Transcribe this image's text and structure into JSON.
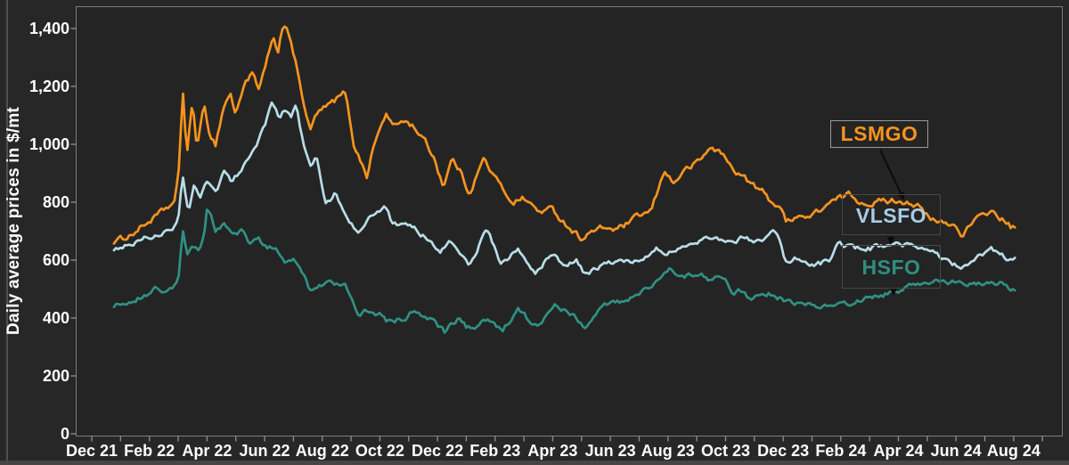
{
  "chart_data": {
    "type": "line",
    "title": "",
    "xlabel": "",
    "ylabel": "Daily average prices in $/mt",
    "ylim": [
      0,
      1400
    ],
    "y_tick_values": [
      0,
      200,
      400,
      600,
      800,
      1000,
      1200,
      1400
    ],
    "y_tick_labels": [
      "0",
      "200",
      "400",
      "600",
      "800",
      "1,000",
      "1,200",
      "1,400"
    ],
    "x_tick_labels": [
      "Dec 21",
      "Feb 22",
      "Apr 22",
      "Jun 22",
      "Aug 22",
      "Oct 22",
      "Dec 22",
      "Feb 23",
      "Apr 23",
      "Jun 23",
      "Aug 23",
      "Oct 23",
      "Dec 23",
      "Feb 24",
      "Apr 24",
      "Jun 24",
      "Aug 24"
    ],
    "x_minor_tick_interval_months": 1,
    "x_anchor_unit": "months_after_Dec_2021_tick",
    "grid": false,
    "legend_position": "annotated-boxes-right",
    "colors": {
      "background": "#272727",
      "plot_background": "#242424",
      "axis_border": "#7d7d7d",
      "tick": "#8a8a8a",
      "tick_label": "#ffffff",
      "leader_arrow": "#0d0d0d"
    },
    "legend": [
      {
        "label": "LSMGO",
        "text_color": "#F7941E"
      },
      {
        "label": "VLSFO",
        "text_color": "#A9CBE4"
      },
      {
        "label": "HSFO",
        "text_color": "#2F8F80"
      }
    ],
    "series": [
      {
        "name": "LSMGO",
        "color": "#F7941E",
        "anchors": [
          [
            0.77,
            665
          ],
          [
            1.0,
            672
          ],
          [
            1.4,
            690
          ],
          [
            1.8,
            720
          ],
          [
            2.2,
            748
          ],
          [
            2.6,
            780
          ],
          [
            2.9,
            800
          ],
          [
            3.05,
            940
          ],
          [
            3.15,
            1210
          ],
          [
            3.3,
            960
          ],
          [
            3.5,
            1150
          ],
          [
            3.65,
            990
          ],
          [
            3.9,
            1130
          ],
          [
            4.1,
            1035
          ],
          [
            4.3,
            1000
          ],
          [
            4.55,
            1120
          ],
          [
            4.8,
            1180
          ],
          [
            5.0,
            1100
          ],
          [
            5.3,
            1215
          ],
          [
            5.6,
            1245
          ],
          [
            5.8,
            1180
          ],
          [
            6.1,
            1300
          ],
          [
            6.3,
            1360
          ],
          [
            6.45,
            1310
          ],
          [
            6.6,
            1400
          ],
          [
            6.75,
            1420
          ],
          [
            6.95,
            1330
          ],
          [
            7.2,
            1230
          ],
          [
            7.45,
            1090
          ],
          [
            7.6,
            1050
          ],
          [
            7.8,
            1105
          ],
          [
            8.3,
            1140
          ],
          [
            8.8,
            1180
          ],
          [
            9.1,
            1000
          ],
          [
            9.55,
            890
          ],
          [
            9.8,
            1000
          ],
          [
            10.2,
            1105
          ],
          [
            10.5,
            1060
          ],
          [
            10.8,
            1085
          ],
          [
            11.2,
            1060
          ],
          [
            11.6,
            1005
          ],
          [
            11.9,
            950
          ],
          [
            12.2,
            855
          ],
          [
            12.5,
            950
          ],
          [
            12.8,
            905
          ],
          [
            13.1,
            830
          ],
          [
            13.6,
            950
          ],
          [
            13.9,
            900
          ],
          [
            14.2,
            855
          ],
          [
            14.6,
            800
          ],
          [
            15.0,
            815
          ],
          [
            15.5,
            768
          ],
          [
            16.0,
            776
          ],
          [
            16.3,
            740
          ],
          [
            16.6,
            710
          ],
          [
            17.0,
            675
          ],
          [
            17.4,
            700
          ],
          [
            17.8,
            712
          ],
          [
            18.2,
            705
          ],
          [
            18.6,
            725
          ],
          [
            19.0,
            754
          ],
          [
            19.4,
            766
          ],
          [
            19.9,
            914
          ],
          [
            20.2,
            862
          ],
          [
            20.5,
            905
          ],
          [
            20.9,
            929
          ],
          [
            21.2,
            955
          ],
          [
            21.5,
            991
          ],
          [
            21.9,
            966
          ],
          [
            22.2,
            920
          ],
          [
            22.6,
            889
          ],
          [
            23.0,
            855
          ],
          [
            23.3,
            835
          ],
          [
            23.6,
            800
          ],
          [
            23.9,
            787
          ],
          [
            24.1,
            729
          ],
          [
            24.5,
            760
          ],
          [
            24.8,
            745
          ],
          [
            25.1,
            760
          ],
          [
            25.5,
            791
          ],
          [
            26.0,
            815
          ],
          [
            26.3,
            828
          ],
          [
            26.7,
            800
          ],
          [
            27.1,
            797
          ],
          [
            27.5,
            805
          ],
          [
            28.0,
            806
          ],
          [
            28.4,
            800
          ],
          [
            28.7,
            785
          ],
          [
            29.1,
            739
          ],
          [
            29.5,
            729
          ],
          [
            29.9,
            723
          ],
          [
            30.2,
            689
          ],
          [
            30.6,
            730
          ],
          [
            31.0,
            760
          ],
          [
            31.2,
            770
          ],
          [
            31.6,
            740
          ],
          [
            31.9,
            715
          ],
          [
            32.1,
            706
          ]
        ]
      },
      {
        "name": "VLSFO",
        "color": "#B8DDE8",
        "anchors": [
          [
            0.77,
            640
          ],
          [
            1.1,
            650
          ],
          [
            1.5,
            660
          ],
          [
            1.9,
            678
          ],
          [
            2.3,
            688
          ],
          [
            2.7,
            700
          ],
          [
            3.0,
            730
          ],
          [
            3.15,
            905
          ],
          [
            3.35,
            770
          ],
          [
            3.55,
            860
          ],
          [
            3.75,
            805
          ],
          [
            4.0,
            870
          ],
          [
            4.3,
            830
          ],
          [
            4.6,
            905
          ],
          [
            4.85,
            870
          ],
          [
            5.1,
            900
          ],
          [
            5.4,
            950
          ],
          [
            5.7,
            1000
          ],
          [
            6.0,
            1060
          ],
          [
            6.25,
            1150
          ],
          [
            6.5,
            1090
          ],
          [
            6.7,
            1120
          ],
          [
            6.9,
            1090
          ],
          [
            7.1,
            1130
          ],
          [
            7.35,
            1000
          ],
          [
            7.6,
            925
          ],
          [
            7.8,
            960
          ],
          [
            8.1,
            790
          ],
          [
            8.45,
            830
          ],
          [
            8.7,
            782
          ],
          [
            9.2,
            695
          ],
          [
            9.6,
            740
          ],
          [
            10.0,
            770
          ],
          [
            10.2,
            785
          ],
          [
            10.4,
            736
          ],
          [
            10.8,
            720
          ],
          [
            11.2,
            708
          ],
          [
            11.7,
            668
          ],
          [
            12.1,
            628
          ],
          [
            12.4,
            660
          ],
          [
            12.7,
            637
          ],
          [
            13.1,
            582
          ],
          [
            13.4,
            640
          ],
          [
            13.7,
            714
          ],
          [
            14.2,
            585
          ],
          [
            14.5,
            610
          ],
          [
            14.8,
            637
          ],
          [
            15.1,
            600
          ],
          [
            15.4,
            554
          ],
          [
            15.8,
            600
          ],
          [
            16.0,
            616
          ],
          [
            16.5,
            576
          ],
          [
            16.8,
            600
          ],
          [
            17.1,
            554
          ],
          [
            17.5,
            570
          ],
          [
            17.9,
            585
          ],
          [
            18.3,
            600
          ],
          [
            18.7,
            590
          ],
          [
            19.0,
            600
          ],
          [
            19.6,
            643
          ],
          [
            20.0,
            625
          ],
          [
            20.3,
            637
          ],
          [
            20.7,
            643
          ],
          [
            21.0,
            660
          ],
          [
            21.3,
            677
          ],
          [
            21.6,
            683
          ],
          [
            22.0,
            670
          ],
          [
            22.4,
            668
          ],
          [
            22.7,
            683
          ],
          [
            23.0,
            665
          ],
          [
            23.3,
            674
          ],
          [
            23.6,
            699
          ],
          [
            23.85,
            680
          ],
          [
            24.1,
            591
          ],
          [
            24.4,
            606
          ],
          [
            24.7,
            590
          ],
          [
            25.0,
            585
          ],
          [
            25.3,
            590
          ],
          [
            25.6,
            600
          ],
          [
            25.9,
            658
          ],
          [
            26.2,
            646
          ],
          [
            26.6,
            643
          ],
          [
            27.0,
            640
          ],
          [
            27.3,
            648
          ],
          [
            27.7,
            652
          ],
          [
            28.1,
            650
          ],
          [
            28.4,
            652
          ],
          [
            28.8,
            640
          ],
          [
            29.1,
            637
          ],
          [
            29.4,
            612
          ],
          [
            29.7,
            597
          ],
          [
            30.0,
            582
          ],
          [
            30.2,
            576
          ],
          [
            30.5,
            597
          ],
          [
            30.9,
            620
          ],
          [
            31.2,
            637
          ],
          [
            31.5,
            625
          ],
          [
            31.8,
            605
          ],
          [
            32.1,
            601
          ]
        ]
      },
      {
        "name": "HSFO",
        "color": "#2F9183",
        "anchors": [
          [
            0.77,
            443
          ],
          [
            1.1,
            452
          ],
          [
            1.5,
            465
          ],
          [
            1.9,
            480
          ],
          [
            2.2,
            500
          ],
          [
            2.5,
            490
          ],
          [
            2.8,
            505
          ],
          [
            3.0,
            520
          ],
          [
            3.15,
            705
          ],
          [
            3.3,
            615
          ],
          [
            3.5,
            650
          ],
          [
            3.7,
            630
          ],
          [
            3.9,
            680
          ],
          [
            4.0,
            785
          ],
          [
            4.15,
            760
          ],
          [
            4.3,
            700
          ],
          [
            4.6,
            730
          ],
          [
            4.9,
            683
          ],
          [
            5.2,
            698
          ],
          [
            5.5,
            658
          ],
          [
            5.8,
            668
          ],
          [
            6.1,
            640
          ],
          [
            6.4,
            648
          ],
          [
            6.7,
            585
          ],
          [
            7.0,
            600
          ],
          [
            7.2,
            575
          ],
          [
            7.35,
            554
          ],
          [
            7.6,
            492
          ],
          [
            7.9,
            510
          ],
          [
            8.2,
            532
          ],
          [
            8.5,
            520
          ],
          [
            8.8,
            522
          ],
          [
            9.0,
            465
          ],
          [
            9.25,
            412
          ],
          [
            9.6,
            430
          ],
          [
            10.0,
            412
          ],
          [
            10.25,
            385
          ],
          [
            10.6,
            395
          ],
          [
            10.9,
            382
          ],
          [
            11.1,
            422
          ],
          [
            11.4,
            408
          ],
          [
            11.7,
            400
          ],
          [
            12.0,
            375
          ],
          [
            12.25,
            351
          ],
          [
            12.5,
            380
          ],
          [
            12.75,
            397
          ],
          [
            13.0,
            370
          ],
          [
            13.25,
            360
          ],
          [
            13.5,
            380
          ],
          [
            13.75,
            391
          ],
          [
            14.0,
            375
          ],
          [
            14.25,
            360
          ],
          [
            14.5,
            390
          ],
          [
            14.8,
            431
          ],
          [
            15.1,
            400
          ],
          [
            15.5,
            366
          ],
          [
            15.8,
            410
          ],
          [
            16.1,
            443
          ],
          [
            16.4,
            425
          ],
          [
            16.7,
            412
          ],
          [
            17.1,
            369
          ],
          [
            17.5,
            420
          ],
          [
            17.9,
            450
          ],
          [
            18.3,
            455
          ],
          [
            18.7,
            468
          ],
          [
            19.1,
            489
          ],
          [
            19.5,
            520
          ],
          [
            19.8,
            545
          ],
          [
            20.1,
            569
          ],
          [
            20.4,
            540
          ],
          [
            20.8,
            551
          ],
          [
            21.2,
            545
          ],
          [
            21.5,
            529
          ],
          [
            21.8,
            540
          ],
          [
            22.0,
            535
          ],
          [
            22.25,
            477
          ],
          [
            22.45,
            505
          ],
          [
            22.8,
            468
          ],
          [
            23.2,
            477
          ],
          [
            23.6,
            483
          ],
          [
            24.0,
            462
          ],
          [
            24.3,
            450
          ],
          [
            24.6,
            446
          ],
          [
            25.0,
            452
          ],
          [
            25.3,
            440
          ],
          [
            25.6,
            437
          ],
          [
            26.0,
            452
          ],
          [
            26.3,
            445
          ],
          [
            26.6,
            462
          ],
          [
            27.0,
            470
          ],
          [
            27.4,
            477
          ],
          [
            27.8,
            489
          ],
          [
            28.2,
            500
          ],
          [
            28.5,
            514
          ],
          [
            28.8,
            520
          ],
          [
            29.3,
            529
          ],
          [
            29.7,
            525
          ],
          [
            30.0,
            523
          ],
          [
            30.3,
            518
          ],
          [
            30.6,
            514
          ],
          [
            31.0,
            520
          ],
          [
            31.3,
            523
          ],
          [
            31.6,
            520
          ],
          [
            31.9,
            500
          ],
          [
            32.1,
            493
          ]
        ]
      }
    ]
  }
}
